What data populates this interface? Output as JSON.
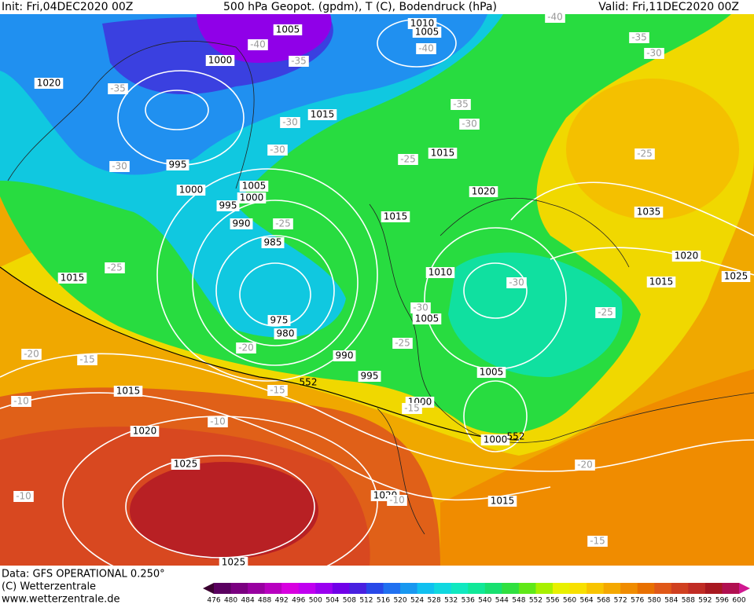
{
  "header": {
    "init": "Init: Fri,04DEC2020 00Z",
    "title": "500 hPa Geopot. (gpdm), T (C), Bodendruck (hPa)",
    "valid": "Valid: Fri,11DEC2020 00Z"
  },
  "footer": {
    "data": "Data: GFS OPERATIONAL 0.250°",
    "copyright": "(C) Wetterzentrale",
    "url": "www.wetterzentrale.de"
  },
  "map": {
    "isobar_labels": [
      "1005",
      "1000",
      "1010",
      "1005",
      "1020",
      "1015",
      "995",
      "1000",
      "1005",
      "1000",
      "995",
      "1015",
      "1020",
      "1015",
      "990",
      "985",
      "1035",
      "1020",
      "1015",
      "1025",
      "1015",
      "1010",
      "1005",
      "975",
      "980",
      "990",
      "995",
      "1005",
      "1015",
      "1000",
      "1020",
      "1000",
      "1025",
      "1020",
      "1015",
      "1025"
    ],
    "temperature_labels": [
      "-40",
      "-35",
      "-40",
      "-35",
      "-30",
      "-35",
      "-30",
      "-30",
      "-30",
      "-25",
      "-25",
      "-25",
      "-30",
      "-30",
      "-25",
      "-20",
      "-25",
      "-20",
      "-15",
      "-15",
      "-15",
      "-10",
      "-10",
      "-20",
      "-10",
      "-10",
      "-15",
      "-35",
      "-30",
      "-25",
      "-40"
    ],
    "contour_labels": [
      "552",
      "552"
    ]
  },
  "colorbar": {
    "ticks": [
      "476",
      "480",
      "484",
      "488",
      "492",
      "496",
      "500",
      "504",
      "508",
      "512",
      "516",
      "520",
      "524",
      "528",
      "532",
      "536",
      "540",
      "544",
      "548",
      "552",
      "556",
      "560",
      "564",
      "568",
      "572",
      "576",
      "580",
      "584",
      "588",
      "592",
      "596",
      "600"
    ],
    "colors": [
      "#3a0030",
      "#5a0060",
      "#7a0080",
      "#9800a0",
      "#b800c0",
      "#d800e0",
      "#c000f0",
      "#9a00f0",
      "#7000e8",
      "#4820e0",
      "#2848e8",
      "#2070f0",
      "#1898f0",
      "#10c0f0",
      "#10d8e0",
      "#10e8c0",
      "#10e898",
      "#18e070",
      "#30e040",
      "#60e818",
      "#a8f000",
      "#e8f000",
      "#f8e000",
      "#f8c400",
      "#f4a800",
      "#f08c00",
      "#e87000",
      "#e05818",
      "#d04020",
      "#c02c24",
      "#a81820",
      "#b01050",
      "#d01890"
    ]
  }
}
